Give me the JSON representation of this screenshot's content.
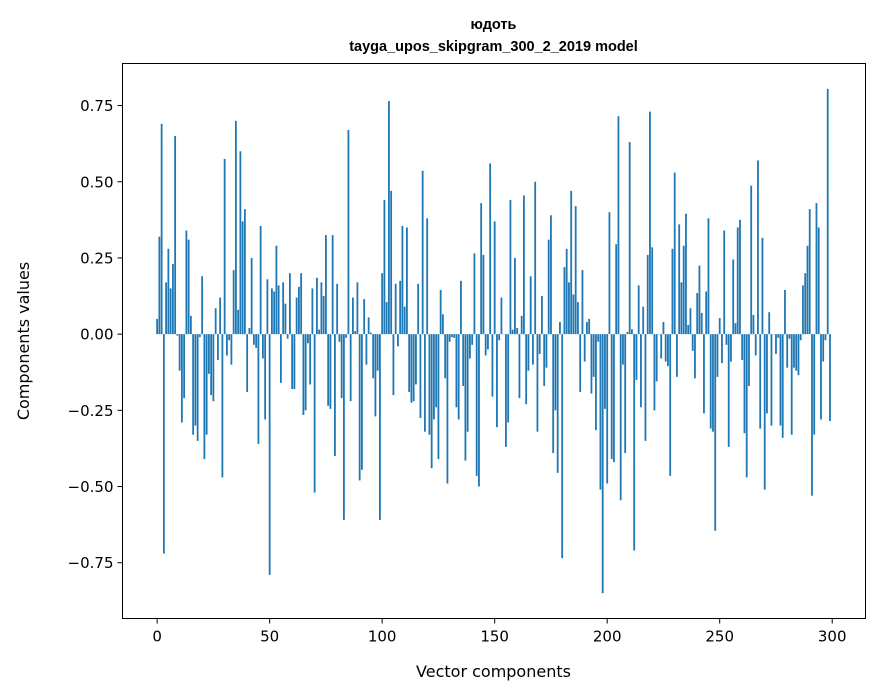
{
  "chart_data": {
    "type": "bar",
    "title_lines": [
      "юдоть",
      "tayga_upos_skipgram_300_2_2019 model"
    ],
    "xlabel": "Vector components",
    "ylabel": "Components values",
    "xlim": [
      -15.39,
      314.79
    ],
    "ylim": [
      -0.933,
      0.888
    ],
    "xticks": [
      0,
      50,
      100,
      150,
      200,
      250,
      300
    ],
    "xtick_labels": [
      "0",
      "50",
      "100",
      "150",
      "200",
      "250",
      "300"
    ],
    "yticks": [
      -0.75,
      -0.5,
      -0.25,
      0,
      0.25,
      0.5,
      0.75
    ],
    "ytick_labels": [
      "−0.75",
      "−0.50",
      "−0.25",
      "0.00",
      "0.25",
      "0.50",
      "0.75"
    ],
    "bar_color": "#1f77b4",
    "bar_width": 0.8,
    "grid": false,
    "values": [
      0.05,
      0.32,
      0.69,
      -0.72,
      0.17,
      0.28,
      0.15,
      0.23,
      0.65,
      -0.005,
      -0.12,
      -0.29,
      -0.21,
      0.34,
      0.31,
      0.06,
      -0.33,
      -0.3,
      -0.35,
      -0.01,
      0.19,
      -0.41,
      -0.33,
      -0.13,
      -0.2,
      -0.22,
      0.085,
      -0.085,
      0.12,
      -0.47,
      0.575,
      -0.07,
      -0.02,
      -0.1,
      0.21,
      0.7,
      0.08,
      0.6,
      0.37,
      0.41,
      -0.19,
      0.02,
      0.25,
      -0.035,
      -0.045,
      -0.36,
      0.355,
      -0.08,
      -0.28,
      0.18,
      -0.79,
      0.15,
      0.14,
      0.29,
      0.16,
      -0.16,
      0.17,
      0.1,
      -0.015,
      0.2,
      -0.18,
      -0.18,
      0.12,
      0.155,
      0.2,
      -0.265,
      -0.25,
      -0.03,
      -0.165,
      0.15,
      -0.52,
      0.185,
      0.015,
      0.17,
      0.125,
      0.325,
      -0.235,
      -0.245,
      0.325,
      -0.4,
      0.165,
      -0.025,
      -0.21,
      -0.61,
      -0.012,
      0.67,
      -0.22,
      0.12,
      0.01,
      0.17,
      -0.48,
      -0.445,
      0.115,
      -0.1,
      0.055,
      0.005,
      -0.145,
      -0.27,
      -0.12,
      -0.61,
      0.2,
      0.44,
      0.105,
      0.765,
      0.47,
      -0.2,
      0.165,
      -0.04,
      0.175,
      0.355,
      0.09,
      0.35,
      -0.19,
      -0.225,
      -0.22,
      -0.165,
      0.165,
      -0.275,
      0.536,
      -0.32,
      0.38,
      -0.33,
      -0.44,
      -0.28,
      -0.24,
      -0.41,
      0.145,
      0.065,
      -0.145,
      -0.49,
      -0.025,
      -0.01,
      -0.012,
      -0.24,
      -0.28,
      0.175,
      -0.17,
      -0.415,
      -0.32,
      -0.08,
      -0.035,
      0.265,
      -0.465,
      -0.5,
      0.43,
      0.26,
      -0.07,
      -0.05,
      0.56,
      -0.205,
      0.37,
      -0.305,
      -0.02,
      0.12,
      0.0,
      -0.37,
      -0.29,
      0.44,
      0.015,
      0.25,
      0.02,
      -0.21,
      0.06,
      0.455,
      -0.23,
      -0.12,
      0.19,
      -0.1,
      0.5,
      -0.32,
      -0.065,
      0.125,
      -0.17,
      -0.11,
      0.31,
      0.39,
      -0.39,
      -0.25,
      -0.455,
      0.04,
      -0.735,
      0.22,
      0.28,
      0.17,
      0.47,
      0.13,
      0.42,
      0.105,
      -0.19,
      0.21,
      -0.09,
      0.04,
      0.05,
      -0.195,
      -0.14,
      -0.315,
      -0.025,
      -0.51,
      -0.85,
      -0.245,
      -0.49,
      0.4,
      -0.41,
      -0.42,
      0.295,
      0.715,
      -0.545,
      -0.1,
      -0.39,
      0.007,
      0.63,
      0.016,
      -0.71,
      -0.15,
      0.16,
      -0.24,
      0.09,
      -0.35,
      0.26,
      0.73,
      0.285,
      -0.25,
      -0.155,
      0.0,
      -0.08,
      0.04,
      -0.09,
      -0.105,
      -0.465,
      0.28,
      0.53,
      -0.14,
      0.36,
      0.17,
      0.29,
      0.395,
      0.03,
      0.085,
      -0.055,
      -0.145,
      0.135,
      0.225,
      0.07,
      -0.26,
      0.14,
      0.38,
      -0.31,
      -0.32,
      -0.645,
      -0.14,
      0.053,
      -0.095,
      0.34,
      -0.035,
      -0.37,
      -0.09,
      0.245,
      0.036,
      0.35,
      0.375,
      -0.085,
      -0.325,
      -0.47,
      -0.17,
      0.487,
      0.063,
      -0.07,
      0.57,
      -0.31,
      0.316,
      -0.51,
      -0.26,
      0.072,
      -0.3,
      0.0,
      -0.065,
      -0.012,
      -0.3,
      -0.34,
      0.145,
      -0.11,
      -0.015,
      -0.33,
      -0.11,
      -0.12,
      -0.135,
      -0.02,
      0.16,
      0.2,
      0.29,
      0.41,
      -0.53,
      -0.33,
      0.43,
      0.35,
      -0.28,
      -0.09,
      -0.02,
      0.805,
      -0.285
    ]
  }
}
